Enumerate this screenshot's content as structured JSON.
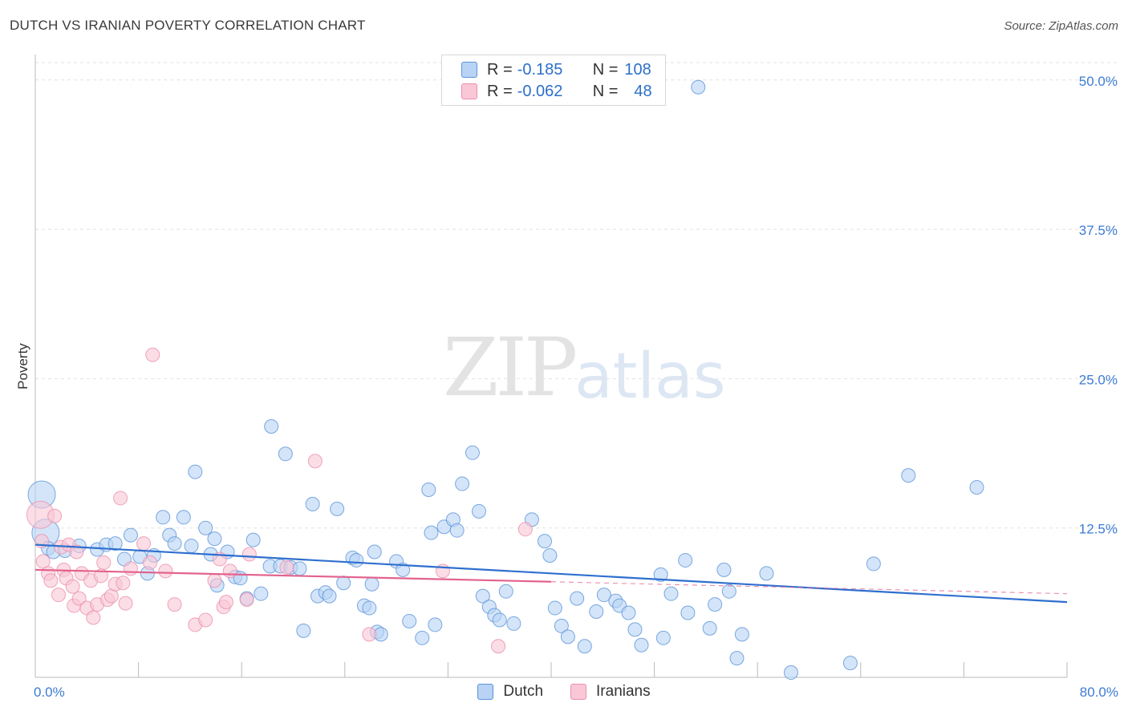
{
  "title": "DUTCH VS IRANIAN POVERTY CORRELATION CHART",
  "source": "Source: ZipAtlas.com",
  "watermark": {
    "zip": "ZIP",
    "atlas": "atlas"
  },
  "colors": {
    "dutch_fill": "#b8d3f5",
    "dutch_stroke": "#5b93d8",
    "dutch_line": "#2f6fcf",
    "iranian_fill": "#f9c7d6",
    "iranian_stroke": "#ec8fab",
    "iranian_line": "#e3628d",
    "tick_label": "#3d7bd4",
    "grid": "#e2e2e2"
  },
  "legend_top": {
    "rows": [
      {
        "r_label": "R =",
        "r_value": "-0.185",
        "n_label": "N =",
        "n_value": "108"
      },
      {
        "r_label": "R =",
        "r_value": "-0.062",
        "n_label": "N =",
        "n_value": "48"
      }
    ]
  },
  "legend_bottom": {
    "dutch": "Dutch",
    "iranians": "Iranians"
  },
  "chart_data": {
    "type": "scatter",
    "title": "DUTCH VS IRANIAN POVERTY CORRELATION CHART",
    "xlabel": "",
    "ylabel": "Poverty",
    "xlim": [
      0,
      80
    ],
    "ylim": [
      0,
      52
    ],
    "x_tick_labels": [
      {
        "x": 0,
        "label": "0.0%"
      },
      {
        "x": 80,
        "label": "80.0%"
      }
    ],
    "y_tick_labels": [
      {
        "y": 12.5,
        "label": "12.5%"
      },
      {
        "y": 25,
        "label": "25.0%"
      },
      {
        "y": 37.5,
        "label": "37.5%"
      },
      {
        "y": 50,
        "label": "50.0%"
      }
    ],
    "grid": true,
    "legend": "top-center",
    "series": [
      {
        "name": "Dutch",
        "r": -0.185,
        "n": 108,
        "trend": {
          "x": [
            0,
            80
          ],
          "y": [
            11.1,
            6.3
          ]
        },
        "points": [
          [
            0.5,
            15.3,
            3
          ],
          [
            0.8,
            12.1,
            3
          ],
          [
            1.0,
            10.8,
            1
          ],
          [
            1.4,
            10.5,
            1
          ],
          [
            2.3,
            10.6,
            1
          ],
          [
            3.4,
            11.0,
            1
          ],
          [
            4.8,
            10.7,
            1
          ],
          [
            5.5,
            11.1,
            1
          ],
          [
            6.2,
            11.2,
            1
          ],
          [
            6.9,
            9.9,
            1
          ],
          [
            7.4,
            11.9,
            1
          ],
          [
            8.1,
            10.1,
            1
          ],
          [
            8.7,
            8.7,
            1
          ],
          [
            9.2,
            10.2,
            1
          ],
          [
            9.9,
            13.4,
            1
          ],
          [
            10.4,
            11.9,
            1
          ],
          [
            10.8,
            11.2,
            1
          ],
          [
            11.5,
            13.4,
            1
          ],
          [
            12.1,
            11.0,
            1
          ],
          [
            12.4,
            17.2,
            1
          ],
          [
            13.2,
            12.5,
            1
          ],
          [
            13.6,
            10.3,
            1
          ],
          [
            13.9,
            11.6,
            1
          ],
          [
            14.1,
            7.7,
            1
          ],
          [
            14.9,
            10.5,
            1
          ],
          [
            15.5,
            8.4,
            1
          ],
          [
            15.9,
            8.3,
            1
          ],
          [
            16.4,
            6.6,
            1
          ],
          [
            16.9,
            11.5,
            1
          ],
          [
            17.5,
            7.0,
            1
          ],
          [
            18.2,
            9.3,
            1
          ],
          [
            18.3,
            21.0,
            1
          ],
          [
            19.0,
            9.3,
            1
          ],
          [
            19.4,
            18.7,
            1
          ],
          [
            19.8,
            9.2,
            1
          ],
          [
            20.5,
            9.1,
            1
          ],
          [
            20.8,
            3.9,
            1
          ],
          [
            21.5,
            14.5,
            1
          ],
          [
            21.9,
            6.8,
            1
          ],
          [
            22.5,
            7.1,
            1
          ],
          [
            22.8,
            6.8,
            1
          ],
          [
            23.4,
            14.1,
            1
          ],
          [
            23.9,
            7.9,
            1
          ],
          [
            24.6,
            10.0,
            1
          ],
          [
            24.9,
            9.8,
            1
          ],
          [
            25.5,
            6.0,
            1
          ],
          [
            25.9,
            5.8,
            1
          ],
          [
            26.1,
            7.8,
            1
          ],
          [
            26.3,
            10.5,
            1
          ],
          [
            26.5,
            3.8,
            1
          ],
          [
            26.8,
            3.6,
            1
          ],
          [
            28.0,
            9.7,
            1
          ],
          [
            28.5,
            9.0,
            1
          ],
          [
            29.0,
            4.7,
            1
          ],
          [
            30.0,
            3.3,
            1
          ],
          [
            30.5,
            15.7,
            1
          ],
          [
            30.7,
            12.1,
            1
          ],
          [
            31.0,
            4.4,
            1
          ],
          [
            31.7,
            12.6,
            1
          ],
          [
            32.4,
            13.2,
            1
          ],
          [
            32.7,
            12.3,
            1
          ],
          [
            33.1,
            16.2,
            1
          ],
          [
            33.9,
            18.8,
            1
          ],
          [
            34.4,
            13.9,
            1
          ],
          [
            34.7,
            6.8,
            1
          ],
          [
            35.2,
            5.9,
            1
          ],
          [
            35.6,
            5.2,
            1
          ],
          [
            36.0,
            4.8,
            1
          ],
          [
            36.5,
            7.2,
            1
          ],
          [
            37.1,
            4.5,
            1
          ],
          [
            38.5,
            13.2,
            1
          ],
          [
            39.5,
            11.4,
            1
          ],
          [
            39.9,
            10.2,
            1
          ],
          [
            40.3,
            5.8,
            1
          ],
          [
            40.8,
            4.3,
            1
          ],
          [
            41.3,
            3.4,
            1
          ],
          [
            42.0,
            6.6,
            1
          ],
          [
            42.6,
            2.6,
            1
          ],
          [
            43.5,
            5.5,
            1
          ],
          [
            44.1,
            6.9,
            1
          ],
          [
            45.0,
            6.4,
            1
          ],
          [
            45.3,
            6.0,
            1
          ],
          [
            46.0,
            5.4,
            1
          ],
          [
            46.5,
            4.0,
            1
          ],
          [
            47.0,
            2.7,
            1
          ],
          [
            48.5,
            8.6,
            1
          ],
          [
            48.7,
            3.3,
            1
          ],
          [
            49.3,
            7.0,
            1
          ],
          [
            50.4,
            9.8,
            1
          ],
          [
            50.6,
            5.4,
            1
          ],
          [
            51.4,
            49.4,
            1
          ],
          [
            52.3,
            4.1,
            1
          ],
          [
            52.7,
            6.1,
            1
          ],
          [
            53.4,
            9.0,
            1
          ],
          [
            53.8,
            7.2,
            1
          ],
          [
            54.4,
            1.6,
            1
          ],
          [
            54.8,
            3.6,
            1
          ],
          [
            56.7,
            8.7,
            1
          ],
          [
            58.6,
            0.4,
            1
          ],
          [
            63.2,
            1.2,
            1
          ],
          [
            65.0,
            9.5,
            1
          ],
          [
            67.7,
            16.9,
            1
          ],
          [
            73.0,
            15.9,
            1
          ]
        ]
      },
      {
        "name": "Iranians",
        "r": -0.062,
        "n": 48,
        "trend": {
          "x": [
            0,
            40
          ],
          "y": [
            9.0,
            8.0
          ]
        },
        "trend_dashed_extension": {
          "x": [
            40,
            80
          ],
          "y": [
            8.0,
            7.0
          ]
        },
        "points": [
          [
            0.4,
            13.6,
            3
          ],
          [
            0.5,
            11.4,
            1
          ],
          [
            0.6,
            9.7,
            1
          ],
          [
            1.0,
            8.7,
            1
          ],
          [
            1.2,
            8.1,
            1
          ],
          [
            1.5,
            13.5,
            1
          ],
          [
            1.8,
            6.9,
            1
          ],
          [
            2.0,
            10.9,
            1
          ],
          [
            2.2,
            9.0,
            1
          ],
          [
            2.4,
            8.3,
            1
          ],
          [
            2.6,
            11.1,
            1
          ],
          [
            2.9,
            7.6,
            1
          ],
          [
            3.0,
            6.0,
            1
          ],
          [
            3.2,
            10.5,
            1
          ],
          [
            3.4,
            6.6,
            1
          ],
          [
            3.6,
            8.7,
            1
          ],
          [
            4.0,
            5.8,
            1
          ],
          [
            4.3,
            8.1,
            1
          ],
          [
            4.5,
            5.0,
            1
          ],
          [
            4.8,
            6.1,
            1
          ],
          [
            5.1,
            8.5,
            1
          ],
          [
            5.3,
            9.6,
            1
          ],
          [
            5.6,
            6.5,
            1
          ],
          [
            5.9,
            6.8,
            1
          ],
          [
            6.2,
            7.8,
            1
          ],
          [
            6.6,
            15.0,
            1
          ],
          [
            6.8,
            7.9,
            1
          ],
          [
            7.0,
            6.2,
            1
          ],
          [
            7.4,
            9.1,
            1
          ],
          [
            8.4,
            11.2,
            1
          ],
          [
            8.9,
            9.6,
            1
          ],
          [
            9.1,
            27.0,
            1
          ],
          [
            10.1,
            8.9,
            1
          ],
          [
            10.8,
            6.1,
            1
          ],
          [
            12.4,
            4.4,
            1
          ],
          [
            13.2,
            4.8,
            1
          ],
          [
            13.9,
            8.1,
            1
          ],
          [
            14.3,
            9.9,
            1
          ],
          [
            14.6,
            5.9,
            1
          ],
          [
            14.8,
            6.3,
            1
          ],
          [
            15.1,
            8.9,
            1
          ],
          [
            16.4,
            6.5,
            1
          ],
          [
            16.6,
            10.3,
            1
          ],
          [
            19.5,
            9.2,
            1
          ],
          [
            21.7,
            18.1,
            1
          ],
          [
            25.9,
            3.6,
            1
          ],
          [
            31.6,
            8.9,
            1
          ],
          [
            35.9,
            2.6,
            1
          ],
          [
            38.0,
            12.4,
            1
          ]
        ]
      }
    ]
  }
}
